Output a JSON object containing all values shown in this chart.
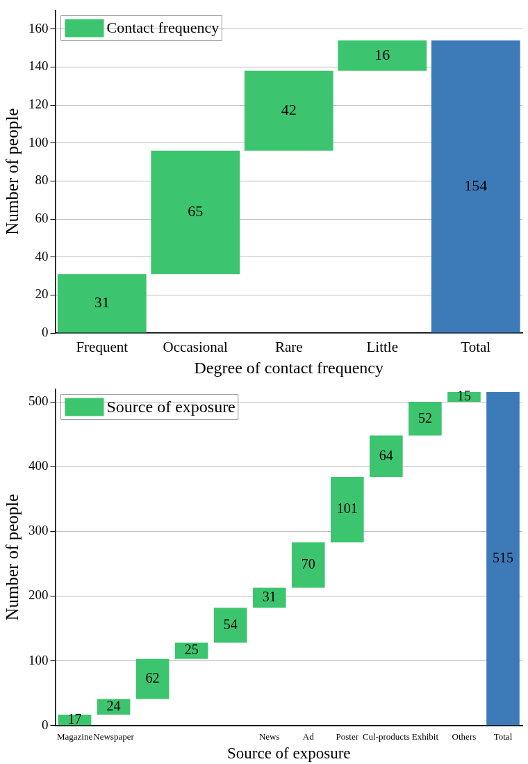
{
  "chart_data": [
    {
      "type": "bar",
      "categories": [
        "Frequent",
        "Occasional",
        "Rare",
        "Little",
        "Total"
      ],
      "series": [
        {
          "name": "Contact frequency",
          "colors": [
            "#3dc46f",
            "#3dc46f",
            "#3dc46f",
            "#3dc46f",
            "#3d7ab8"
          ],
          "values": [
            31,
            65,
            42,
            16,
            154
          ],
          "base": [
            0,
            31,
            96,
            138,
            0
          ]
        }
      ],
      "xlabel": "Degree of contact frequency",
      "ylabel": "Number of people",
      "ylim": [
        0,
        170
      ],
      "yticks": [
        0,
        20,
        40,
        60,
        80,
        100,
        120,
        140,
        160
      ],
      "grid": "y",
      "legend": "top left",
      "data_labels": true
    },
    {
      "type": "bar",
      "categories": [
        "Magazine",
        "Newspaper",
        null,
        null,
        null,
        "News",
        "Ad",
        "Poster",
        "Cul-products",
        "Exhibit",
        "Others",
        "Total"
      ],
      "series": [
        {
          "name": "Source of exposure",
          "colors": [
            "#3dc46f",
            "#3dc46f",
            "#3dc46f",
            "#3dc46f",
            "#3dc46f",
            "#3dc46f",
            "#3dc46f",
            "#3dc46f",
            "#3dc46f",
            "#3dc46f",
            "#3dc46f",
            "#3d7ab8"
          ],
          "values": [
            17,
            24,
            62,
            25,
            54,
            31,
            70,
            101,
            64,
            52,
            15,
            515
          ],
          "base": [
            0,
            17,
            41,
            103,
            128,
            182,
            213,
            283,
            384,
            448,
            500,
            0
          ]
        }
      ],
      "xlabel": "Source of exposure",
      "ylabel": "Number of people",
      "ylim": [
        0,
        520
      ],
      "yticks": [
        0,
        100,
        200,
        300,
        400,
        500
      ],
      "grid": "y",
      "legend": "top left",
      "data_labels": true
    }
  ]
}
